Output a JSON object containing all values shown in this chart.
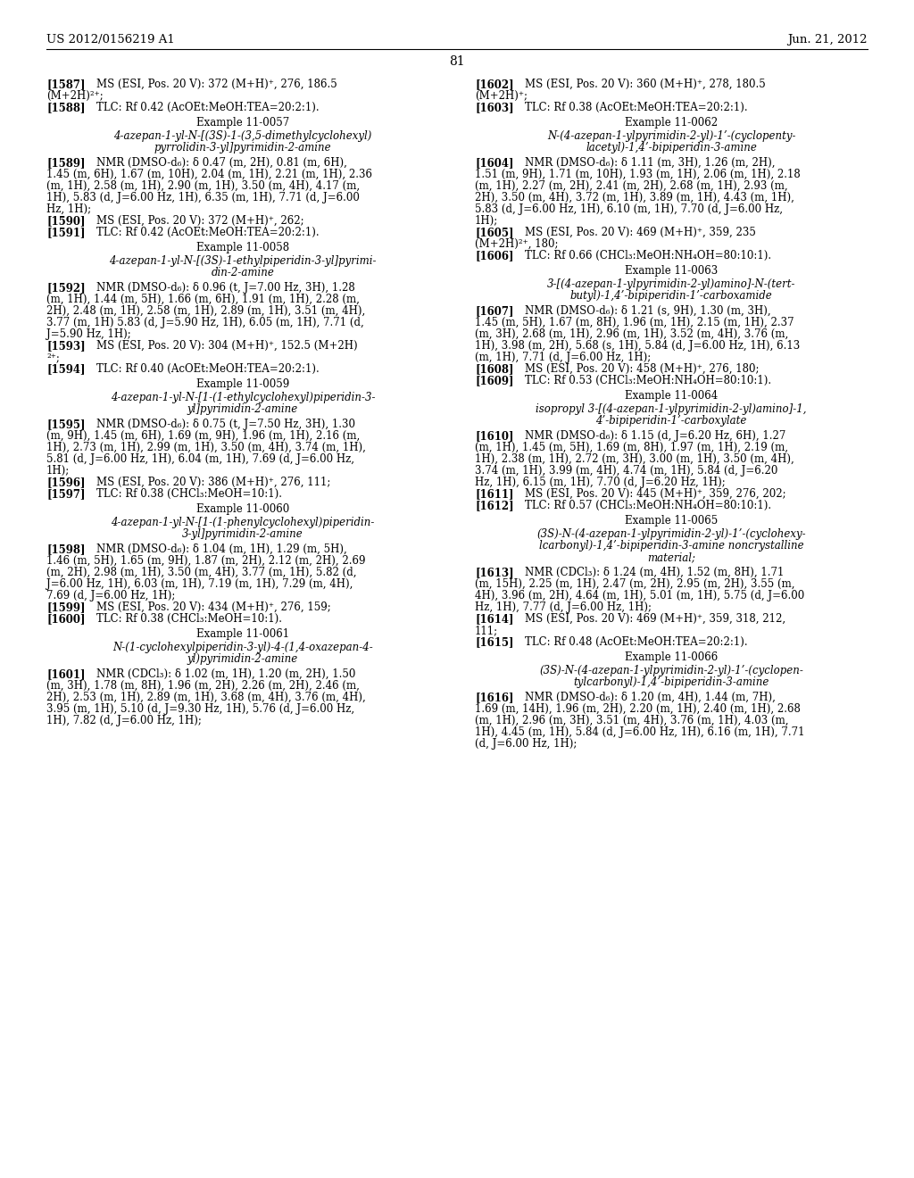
{
  "header_left": "US 2012/0156219 A1",
  "header_right": "Jun. 21, 2012",
  "page_number": "81",
  "background_color": "#ffffff",
  "left_column": [
    {
      "type": "entry",
      "tag": "[1587]",
      "text": "MS (ESI, Pos. 20 V): 372 (M+H)⁺, 276, 186.5\n(M+2H)²⁺;"
    },
    {
      "type": "entry",
      "tag": "[1588]",
      "text": "TLC: Rf 0.42 (AcOEt:MeOH:TEA=20:2:1)."
    },
    {
      "type": "example_title",
      "text": "Example 11-0057"
    },
    {
      "type": "compound_name",
      "lines": [
        "4-azepan-1-yl-N-[(3S)-1-(3,5-dimethylcyclohexyl)",
        "pyrrolidin-3-yl]pyrimidin-2-amine"
      ]
    },
    {
      "type": "entry",
      "tag": "[1589]",
      "text": "NMR (DMSO-d₆): δ 0.47 (m, 2H), 0.81 (m, 6H),\n1.45 (m, 6H), 1.67 (m, 10H), 2.04 (m, 1H), 2.21 (m, 1H), 2.36\n(m, 1H), 2.58 (m, 1H), 2.90 (m, 1H), 3.50 (m, 4H), 4.17 (m,\n1H), 5.83 (d, J=6.00 Hz, 1H), 6.35 (m, 1H), 7.71 (d, J=6.00\nHz, 1H);"
    },
    {
      "type": "entry",
      "tag": "[1590]",
      "text": "MS (ESI, Pos. 20 V): 372 (M+H)⁺, 262;"
    },
    {
      "type": "entry",
      "tag": "[1591]",
      "text": "TLC: Rf 0.42 (AcOEt:MeOH:TEA=20:2:1)."
    },
    {
      "type": "example_title",
      "text": "Example 11-0058"
    },
    {
      "type": "compound_name",
      "lines": [
        "4-azepan-1-yl-N-[(3S)-1-ethylpiperidin-3-yl]pyrimi-",
        "din-2-amine"
      ]
    },
    {
      "type": "entry",
      "tag": "[1592]",
      "text": "NMR (DMSO-d₆): δ 0.96 (t, J=7.00 Hz, 3H), 1.28\n(m, 1H), 1.44 (m, 5H), 1.66 (m, 6H), 1.91 (m, 1H), 2.28 (m,\n2H), 2.48 (m, 1H), 2.58 (m, 1H), 2.89 (m, 1H), 3.51 (m, 4H),\n3.77 (m, 1H) 5.83 (d, J=5.90 Hz, 1H), 6.05 (m, 1H), 7.71 (d,\nJ=5.90 Hz, 1H);"
    },
    {
      "type": "entry",
      "tag": "[1593]",
      "text": "MS (ESI, Pos. 20 V): 304 (M+H)⁺, 152.5 (M+2H)\n²⁺;"
    },
    {
      "type": "entry",
      "tag": "[1594]",
      "text": "TLC: Rf 0.40 (AcOEt:MeOH:TEA=20:2:1)."
    },
    {
      "type": "example_title",
      "text": "Example 11-0059"
    },
    {
      "type": "compound_name",
      "lines": [
        "4-azepan-1-yl-N-[1-(1-ethylcyclohexyl)piperidin-3-",
        "yl]pyrimidin-2-amine"
      ]
    },
    {
      "type": "entry",
      "tag": "[1595]",
      "text": "NMR (DMSO-d₆): δ 0.75 (t, J=7.50 Hz, 3H), 1.30\n(m, 9H), 1.45 (m, 6H), 1.69 (m, 9H), 1.96 (m, 1H), 2.16 (m,\n1H), 2.73 (m, 1H), 2.99 (m, 1H), 3.50 (m, 4H), 3.74 (m, 1H),\n5.81 (d, J=6.00 Hz, 1H), 6.04 (m, 1H), 7.69 (d, J=6.00 Hz,\n1H);"
    },
    {
      "type": "entry",
      "tag": "[1596]",
      "text": "MS (ESI, Pos. 20 V): 386 (M+H)⁺, 276, 111;"
    },
    {
      "type": "entry",
      "tag": "[1597]",
      "text": "TLC: Rf 0.38 (CHCl₃:MeOH=10:1)."
    },
    {
      "type": "example_title",
      "text": "Example 11-0060"
    },
    {
      "type": "compound_name",
      "lines": [
        "4-azepan-1-yl-N-[1-(1-phenylcyclohexyl)piperidin-",
        "3-yl]pyrimidin-2-amine"
      ]
    },
    {
      "type": "entry",
      "tag": "[1598]",
      "text": "NMR (DMSO-d₆): δ 1.04 (m, 1H), 1.29 (m, 5H),\n1.46 (m, 5H), 1.65 (m, 9H), 1.87 (m, 2H), 2.12 (m, 2H), 2.69\n(m, 2H), 2.98 (m, 1H), 3.50 (m, 4H), 3.77 (m, 1H), 5.82 (d,\nJ=6.00 Hz, 1H), 6.03 (m, 1H), 7.19 (m, 1H), 7.29 (m, 4H),\n7.69 (d, J=6.00 Hz, 1H);"
    },
    {
      "type": "entry",
      "tag": "[1599]",
      "text": "MS (ESI, Pos. 20 V): 434 (M+H)⁺, 276, 159;"
    },
    {
      "type": "entry",
      "tag": "[1600]",
      "text": "TLC: Rf 0.38 (CHCl₃:MeOH=10:1)."
    },
    {
      "type": "example_title",
      "text": "Example 11-0061"
    },
    {
      "type": "compound_name",
      "lines": [
        "N-(1-cyclohexylpiperidin-3-yl)-4-(1,4-oxazepan-4-",
        "yl)pyrimidin-2-amine"
      ]
    },
    {
      "type": "entry",
      "tag": "[1601]",
      "text": "NMR (CDCl₃): δ 1.02 (m, 1H), 1.20 (m, 2H), 1.50\n(m, 3H), 1.78 (m, 8H), 1.96 (m, 2H), 2.26 (m, 2H), 2.46 (m,\n2H), 2.53 (m, 1H), 2.89 (m, 1H), 3.68 (m, 4H), 3.76 (m, 4H),\n3.95 (m, 1H), 5.10 (d, J=9.30 Hz, 1H), 5.76 (d, J=6.00 Hz,\n1H), 7.82 (d, J=6.00 Hz, 1H);"
    }
  ],
  "right_column": [
    {
      "type": "entry",
      "tag": "[1602]",
      "text": "MS (ESI, Pos. 20 V): 360 (M+H)⁺, 278, 180.5\n(M+2H)⁺;"
    },
    {
      "type": "entry",
      "tag": "[1603]",
      "text": "TLC: Rf 0.38 (AcOEt:MeOH:TEA=20:2:1)."
    },
    {
      "type": "example_title",
      "text": "Example 11-0062"
    },
    {
      "type": "compound_name",
      "lines": [
        "N-(4-azepan-1-ylpyrimidin-2-yl)-1’-(cyclopenty-",
        "lacetyl)-1,4’-bipiperidin-3-amine"
      ]
    },
    {
      "type": "entry",
      "tag": "[1604]",
      "text": "NMR (DMSO-d₆): δ 1.11 (m, 3H), 1.26 (m, 2H),\n1.51 (m, 9H), 1.71 (m, 10H), 1.93 (m, 1H), 2.06 (m, 1H), 2.18\n(m, 1H), 2.27 (m, 2H), 2.41 (m, 2H), 2.68 (m, 1H), 2.93 (m,\n2H), 3.50 (m, 4H), 3.72 (m, 1H), 3.89 (m, 1H), 4.43 (m, 1H),\n5.83 (d, J=6.00 Hz, 1H), 6.10 (m, 1H), 7.70 (d, J=6.00 Hz,\n1H);"
    },
    {
      "type": "entry",
      "tag": "[1605]",
      "text": "MS (ESI, Pos. 20 V): 469 (M+H)⁺, 359, 235\n(M+2H)²⁺, 180;"
    },
    {
      "type": "entry",
      "tag": "[1606]",
      "text": "TLC: Rf 0.66 (CHCl₃:MeOH:NH₄OH=80:10:1)."
    },
    {
      "type": "example_title",
      "text": "Example 11-0063"
    },
    {
      "type": "compound_name",
      "lines": [
        "3-[(4-azepan-1-ylpyrimidin-2-yl)amino]-N-(tert-",
        "butyl)-1,4’-bipiperidin-1’-carboxamide"
      ]
    },
    {
      "type": "entry",
      "tag": "[1607]",
      "text": "NMR (DMSO-d₆): δ 1.21 (s, 9H), 1.30 (m, 3H),\n1.45 (m, 5H), 1.67 (m, 8H), 1.96 (m, 1H), 2.15 (m, 1H), 2.37\n(m, 3H), 2.68 (m, 1H), 2.96 (m, 1H), 3.52 (m, 4H), 3.76 (m,\n1H), 3.98 (m, 2H), 5.68 (s, 1H), 5.84 (d, J=6.00 Hz, 1H), 6.13\n(m, 1H), 7.71 (d, J=6.00 Hz, 1H);"
    },
    {
      "type": "entry",
      "tag": "[1608]",
      "text": "MS (ESI, Pos. 20 V): 458 (M+H)⁺, 276, 180;"
    },
    {
      "type": "entry",
      "tag": "[1609]",
      "text": "TLC: Rf 0.53 (CHCl₃:MeOH:NH₄OH=80:10:1)."
    },
    {
      "type": "example_title",
      "text": "Example 11-0064"
    },
    {
      "type": "compound_name",
      "lines": [
        "isopropyl 3-[(4-azepan-1-ylpyrimidin-2-yl)amino]-1,",
        "4’-bipiperidin-1’-carboxylate"
      ]
    },
    {
      "type": "entry",
      "tag": "[1610]",
      "text": "NMR (DMSO-d₆): δ 1.15 (d, J=6.20 Hz, 6H), 1.27\n(m, 1H), 1.45 (m, 5H), 1.69 (m, 8H), 1.97 (m, 1H), 2.19 (m,\n1H), 2.38 (m, 1H), 2.72 (m, 3H), 3.00 (m, 1H), 3.50 (m, 4H),\n3.74 (m, 1H), 3.99 (m, 4H), 4.74 (m, 1H), 5.84 (d, J=6.20\nHz, 1H), 6.15 (m, 1H), 7.70 (d, J=6.20 Hz, 1H);"
    },
    {
      "type": "entry",
      "tag": "[1611]",
      "text": "MS (ESI, Pos. 20 V): 445 (M+H)⁺, 359, 276, 202;"
    },
    {
      "type": "entry",
      "tag": "[1612]",
      "text": "TLC: Rf 0.57 (CHCl₃:MeOH:NH₄OH=80:10:1)."
    },
    {
      "type": "example_title",
      "text": "Example 11-0065"
    },
    {
      "type": "compound_name",
      "lines": [
        "(3S)-N-(4-azepan-1-ylpyrimidin-2-yl)-1’-(cyclohexy-",
        "lcarbonyl)-1,4’-bipiperidin-3-amine noncrystalline",
        "material;"
      ]
    },
    {
      "type": "entry",
      "tag": "[1613]",
      "text": "NMR (CDCl₃): δ 1.24 (m, 4H), 1.52 (m, 8H), 1.71\n(m, 15H), 2.25 (m, 1H), 2.47 (m, 2H), 2.95 (m, 2H), 3.55 (m,\n4H), 3.96 (m, 2H), 4.64 (m, 1H), 5.01 (m, 1H), 5.75 (d, J=6.00\nHz, 1H), 7.77 (d, J=6.00 Hz, 1H);"
    },
    {
      "type": "entry",
      "tag": "[1614]",
      "text": "MS (ESI, Pos. 20 V): 469 (M+H)⁺, 359, 318, 212,\n111;"
    },
    {
      "type": "entry",
      "tag": "[1615]",
      "text": "TLC: Rf 0.48 (AcOEt:MeOH:TEA=20:2:1)."
    },
    {
      "type": "example_title",
      "text": "Example 11-0066"
    },
    {
      "type": "compound_name",
      "lines": [
        "(3S)-N-(4-azepan-1-ylpyrimidin-2-yl)-1’-(cyclopen-",
        "tylcarbonyl)-1,4’-bipiperidin-3-amine"
      ]
    },
    {
      "type": "entry",
      "tag": "[1616]",
      "text": "NMR (DMSO-d₆): δ 1.20 (m, 4H), 1.44 (m, 7H),\n1.69 (m, 14H), 1.96 (m, 2H), 2.20 (m, 1H), 2.40 (m, 1H), 2.68\n(m, 1H), 2.96 (m, 3H), 3.51 (m, 4H), 3.76 (m, 1H), 4.03 (m,\n1H), 4.45 (m, 1H), 5.84 (d, J=6.00 Hz, 1H), 6.16 (m, 1H), 7.71\n(d, J=6.00 Hz, 1H);"
    }
  ]
}
